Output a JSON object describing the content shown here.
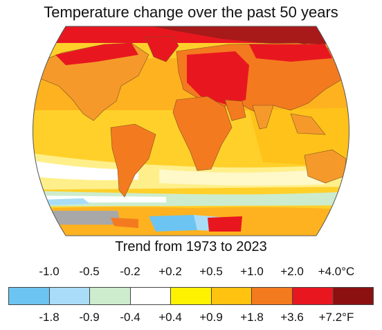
{
  "title": "Temperature change over the past 50 years",
  "subtitle": "Trend from 1973 to 2023",
  "legend": {
    "celsius_labels": [
      "-1.0",
      "-0.5",
      "-0.2",
      "+0.2",
      "+0.5",
      "+1.0",
      "+2.0",
      "+4.0°C"
    ],
    "fahrenheit_labels": [
      "-1.8",
      "-0.9",
      "-0.4",
      "+0.4",
      "+0.9",
      "+1.8",
      "+3.6",
      "+7.2°F"
    ],
    "colors": [
      "#6cc4f2",
      "#a9ddf7",
      "#cdeccd",
      "#ffffff",
      "#fff200",
      "#ffc20e",
      "#f47a1f",
      "#e8171f",
      "#8c1010"
    ]
  },
  "map_colors": {
    "ocean_base": "#ffd02a",
    "warm_land": "#f59a2a",
    "hot": "#e8171f",
    "very_hot": "#a81a1a",
    "neutral": "#ffffff",
    "cool": "#a9ddf7",
    "cold": "#6cc4f2",
    "no_data": "#a8a8a8"
  }
}
